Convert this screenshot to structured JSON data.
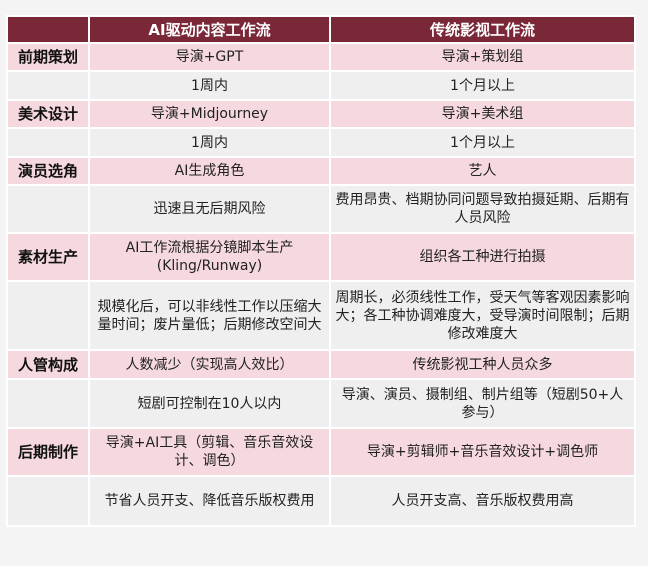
{
  "header": {
    "corner": "",
    "col1": "AI驱动内容工作流",
    "col2": "传统影视工作流"
  },
  "colors": {
    "header_bg": "#7a2838",
    "pink_row": "#f6d9de",
    "light_row": "#efefef"
  },
  "rows": [
    {
      "label": "前期策划",
      "ai": "导演+GPT",
      "traditional": "导演+策划组",
      "style": "pink"
    },
    {
      "label": "",
      "ai": "1周内",
      "traditional": "1个月以上",
      "style": "light"
    },
    {
      "label": "美术设计",
      "ai": "导演+Midjourney",
      "traditional": "导演+美术组",
      "style": "pink"
    },
    {
      "label": "",
      "ai": "1周内",
      "traditional": "1个月以上",
      "style": "light"
    },
    {
      "label": "演员选角",
      "ai": "AI生成角色",
      "traditional": "艺人",
      "style": "pink"
    },
    {
      "label": "",
      "ai": "迅速且无后期风险",
      "traditional": "费用昂贵、档期协同问题导致拍摄延期、后期有人员风险",
      "style": "light"
    },
    {
      "label": "素材生产",
      "ai": "AI工作流根据分镜脚本生产(Kling/Runway)",
      "traditional": "组织各工种进行拍摄",
      "style": "pink"
    },
    {
      "label": "",
      "ai": "规模化后，可以非线性工作以压缩大量时间；废片量低；后期修改空间大",
      "traditional": "周期长，必须线性工作，受天气等客观因素影响大；各工种协调难度大，受导演时间限制；后期修改难度大",
      "style": "light"
    },
    {
      "label": "人管构成",
      "ai": "人数减少（实现高人效比）",
      "traditional": "传统影视工种人员众多",
      "style": "pink"
    },
    {
      "label": "",
      "ai": "短剧可控制在10人以内",
      "traditional": "导演、演员、摄制组、制片组等（短剧50+人参与）",
      "style": "light"
    },
    {
      "label": "后期制作",
      "ai": "导演+AI工具（剪辑、音乐音效设计、调色）",
      "traditional": "导演+剪辑师+音乐音效设计+调色师",
      "style": "pink"
    },
    {
      "label": "",
      "ai": "节省人员开支、降低音乐版权费用",
      "traditional": "人员开支高、音乐版权费用高",
      "style": "light"
    }
  ]
}
